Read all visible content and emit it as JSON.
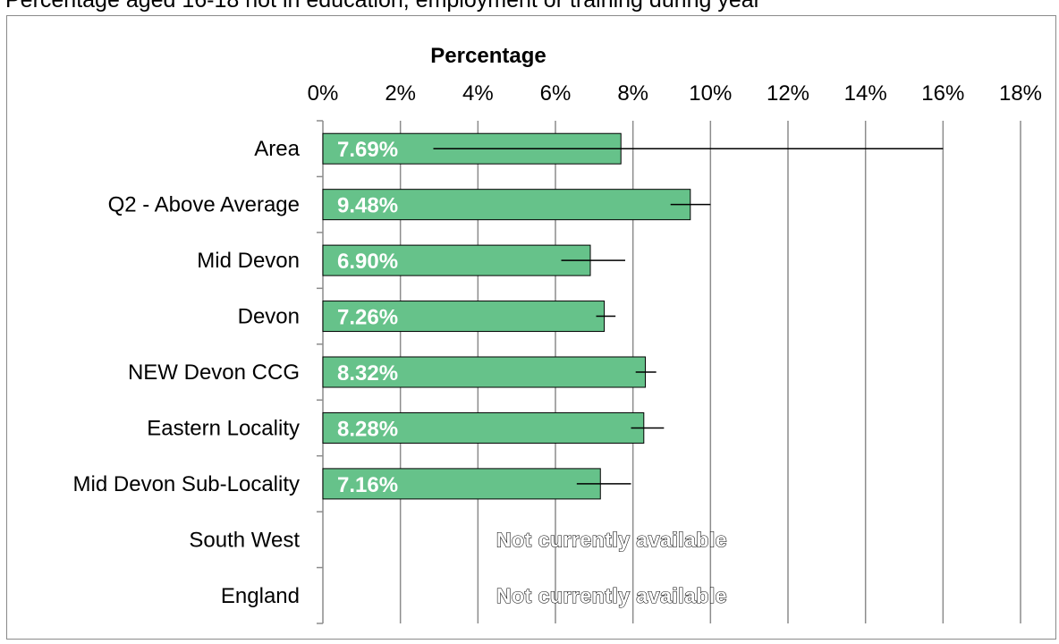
{
  "page": {
    "title": "Percentage aged 16-18 not in education, employment or training during year"
  },
  "chart_data": {
    "type": "bar",
    "orientation": "horizontal",
    "title": "Percentage",
    "xlabel": "Percentage",
    "ylabel": "",
    "xlim": [
      0,
      18
    ],
    "x_ticks": [
      "0%",
      "2%",
      "4%",
      "6%",
      "8%",
      "10%",
      "12%",
      "14%",
      "16%",
      "18%"
    ],
    "x_tick_values": [
      0,
      2,
      4,
      6,
      8,
      10,
      12,
      14,
      16,
      18
    ],
    "categories": [
      "Area",
      "Q2 - Above Average",
      "Mid Devon",
      "Devon",
      "NEW Devon CCG",
      "Eastern Locality",
      "Mid Devon Sub-Locality",
      "South West",
      "England"
    ],
    "values": [
      7.69,
      9.48,
      6.9,
      7.26,
      8.32,
      8.28,
      7.16,
      null,
      null
    ],
    "labels": [
      "7.69%",
      "9.48%",
      "6.90%",
      "7.26%",
      "8.32%",
      "8.28%",
      "7.16%",
      "Not currently available",
      "Not currently available"
    ],
    "error_low": [
      2.85,
      8.97,
      6.15,
      7.05,
      8.07,
      7.95,
      6.55,
      null,
      null
    ],
    "error_high": [
      16.0,
      10.0,
      7.8,
      7.55,
      8.6,
      8.8,
      7.95,
      null,
      null
    ],
    "bar_color": "#66c28a",
    "bar_border_color": "#000000",
    "grid": true,
    "x_axis_position": "top",
    "legend": "none"
  }
}
